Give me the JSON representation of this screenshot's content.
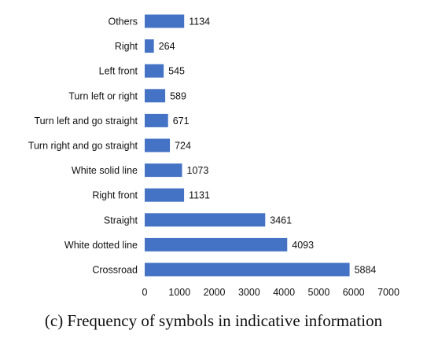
{
  "chart_data": {
    "type": "bar",
    "orientation": "horizontal",
    "categories": [
      "Others",
      "Right",
      "Left front",
      "Turn left or right",
      "Turn left and go straight",
      "Turn right and go straight",
      "White solid line",
      "Right front",
      "Straight",
      "White dotted line",
      "Crossroad"
    ],
    "values": [
      1134,
      264,
      545,
      589,
      671,
      724,
      1073,
      1131,
      3461,
      4093,
      5884
    ],
    "data_labels": [
      "1134",
      "264",
      "545",
      "589",
      "671",
      "724",
      "1073",
      "1131",
      "3461",
      "4093",
      "5884"
    ],
    "x_ticks": [
      "0",
      "1000",
      "2000",
      "3000",
      "4000",
      "5000",
      "6000",
      "7000"
    ],
    "xlim": [
      0,
      7000
    ],
    "grid": false,
    "bar_color": "#4472C4"
  },
  "caption": "(c) Frequency of symbols in indicative information"
}
